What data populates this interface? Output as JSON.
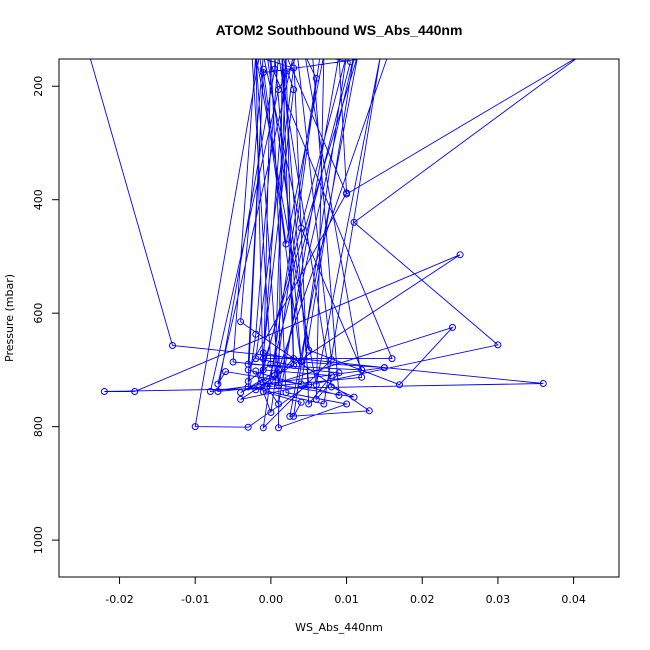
{
  "chart_data": {
    "type": "line",
    "title": "ATOM2 Southbound WS_Abs_440nm",
    "xlabel": "WS_Abs_440nm",
    "ylabel": "Pressure (mbar)",
    "xlim": [
      -0.028,
      0.046
    ],
    "ylim": [
      1065,
      152
    ],
    "y_reversed": true,
    "xticks": [
      -0.02,
      -0.01,
      0.0,
      0.01,
      0.02,
      0.03,
      0.04
    ],
    "xtick_labels": [
      "-0.02",
      "-0.01",
      "0.00",
      "0.01",
      "0.02",
      "0.03",
      "0.04"
    ],
    "yticks": [
      200,
      400,
      600,
      800,
      1000
    ],
    "ytick_labels": [
      "200",
      "400",
      "600",
      "800",
      "1000"
    ],
    "color": "#0000ff",
    "grid": false,
    "series": [
      {
        "values": [
          [
            -0.024,
            145
          ],
          [
            -0.013,
            657
          ],
          [
            0.015,
            696
          ],
          [
            0.036,
            724
          ],
          [
            -0.022,
            738
          ],
          [
            -0.018,
            738
          ],
          [
            0.025,
            497
          ],
          [
            -0.004,
            752
          ],
          [
            0.03,
            656
          ],
          [
            0.011,
            440
          ],
          [
            0.041,
            145
          ],
          [
            0.01,
            390
          ],
          [
            0.002,
            145
          ],
          [
            -0.001,
            680
          ],
          [
            0.016,
            680
          ],
          [
            -0.0005,
            145
          ],
          [
            0.005,
            665
          ],
          [
            0.017,
            726
          ],
          [
            0.024,
            625
          ],
          [
            -0.002,
            735
          ],
          [
            0.0115,
            145
          ],
          [
            0.0025,
            782
          ],
          [
            0.013,
            772
          ],
          [
            -0.004,
            615
          ],
          [
            -0.001,
            145
          ],
          [
            0.004,
            450
          ],
          [
            0.012,
            700
          ],
          [
            -0.003,
            690
          ],
          [
            -0.001,
            170
          ],
          [
            0.002,
            478
          ],
          [
            0.007,
            145
          ],
          [
            0.006,
            752
          ],
          [
            0.009,
            705
          ],
          [
            -0.005,
            686
          ],
          [
            -0.002,
            145
          ],
          [
            0.001,
            727
          ],
          [
            0.011,
            145
          ],
          [
            0.004,
            725
          ],
          [
            -0.006,
            703
          ],
          [
            -0.007,
            725
          ],
          [
            0.003,
            145
          ],
          [
            0.005,
            760
          ],
          [
            0.008,
            710
          ],
          [
            -0.001,
            700
          ],
          [
            0.01,
            145
          ],
          [
            0.003,
            782
          ],
          [
            0.004,
            757
          ],
          [
            -0.001,
            738
          ],
          [
            -0.002,
            145
          ],
          [
            0.006,
            726
          ],
          [
            0.0145,
            145
          ],
          [
            0.007,
            760
          ],
          [
            -0.003,
            730
          ],
          [
            -0.002,
            637
          ],
          [
            0.001,
            145
          ],
          [
            0.008,
            730
          ],
          [
            0.011,
            748
          ],
          [
            -0.001,
            722
          ],
          [
            0.0,
            145
          ],
          [
            0.002,
            740
          ],
          [
            0.01,
            760
          ],
          [
            0.001,
            802
          ],
          [
            0.0015,
            145
          ],
          [
            0.005,
            726
          ],
          [
            -0.003,
            801
          ],
          [
            -0.01,
            800
          ],
          [
            -0.0015,
            145
          ],
          [
            0.004,
            686
          ],
          [
            0.015,
            696
          ],
          [
            -0.008,
            738
          ],
          [
            0.001,
            206
          ],
          [
            0.0035,
            145
          ],
          [
            0.008,
            682
          ],
          [
            -0.001,
            802
          ],
          [
            0.006,
            186
          ],
          [
            0.0045,
            145
          ],
          [
            0.012,
            713
          ],
          [
            -0.007,
            738
          ],
          [
            0.0005,
            170
          ],
          [
            0.0005,
            145
          ],
          [
            0.004,
            684
          ],
          [
            -0.001,
            670
          ],
          [
            0.003,
            206
          ],
          [
            0.0015,
            145
          ],
          [
            0.003,
            692
          ],
          [
            -0.002,
            680
          ],
          [
            0.003,
            168
          ],
          [
            -0.0025,
            145
          ],
          [
            0.0,
            690
          ],
          [
            -0.003,
            720
          ],
          [
            -0.001,
            176
          ],
          [
            0.0155,
            145
          ],
          [
            0.001,
            700
          ],
          [
            -0.004,
            740
          ],
          [
            0.0005,
            710
          ],
          [
            0.002,
            145
          ],
          [
            0.003,
            680
          ],
          [
            -0.0005,
            730
          ],
          [
            0.0105,
            157
          ],
          [
            0.0055,
            145
          ],
          [
            0.009,
            745
          ],
          [
            -0.003,
            700
          ],
          [
            0.01,
            388
          ],
          [
            0.009,
            145
          ],
          [
            0.001,
            760
          ],
          [
            -0.002,
            702
          ],
          [
            0.0,
            775
          ],
          [
            0.0065,
            145
          ]
        ]
      }
    ]
  }
}
